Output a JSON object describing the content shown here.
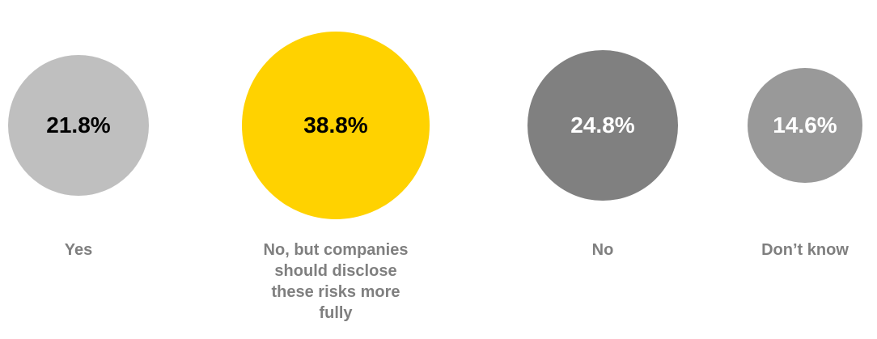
{
  "chart_data": {
    "type": "bubble",
    "categories": [
      "Yes",
      "No, but companies should disclose these risks more fully",
      "No",
      "Don’t know"
    ],
    "values": [
      21.8,
      38.8,
      24.8,
      14.6
    ],
    "value_labels": [
      "21.8%",
      "38.8%",
      "24.8%",
      "14.6%"
    ],
    "colors": [
      "#bfbfbf",
      "#ffd200",
      "#808080",
      "#999999"
    ],
    "value_label_colors": [
      "#000000",
      "#000000",
      "#ffffff",
      "#ffffff"
    ],
    "category_label_color": "#7f7f7f"
  }
}
